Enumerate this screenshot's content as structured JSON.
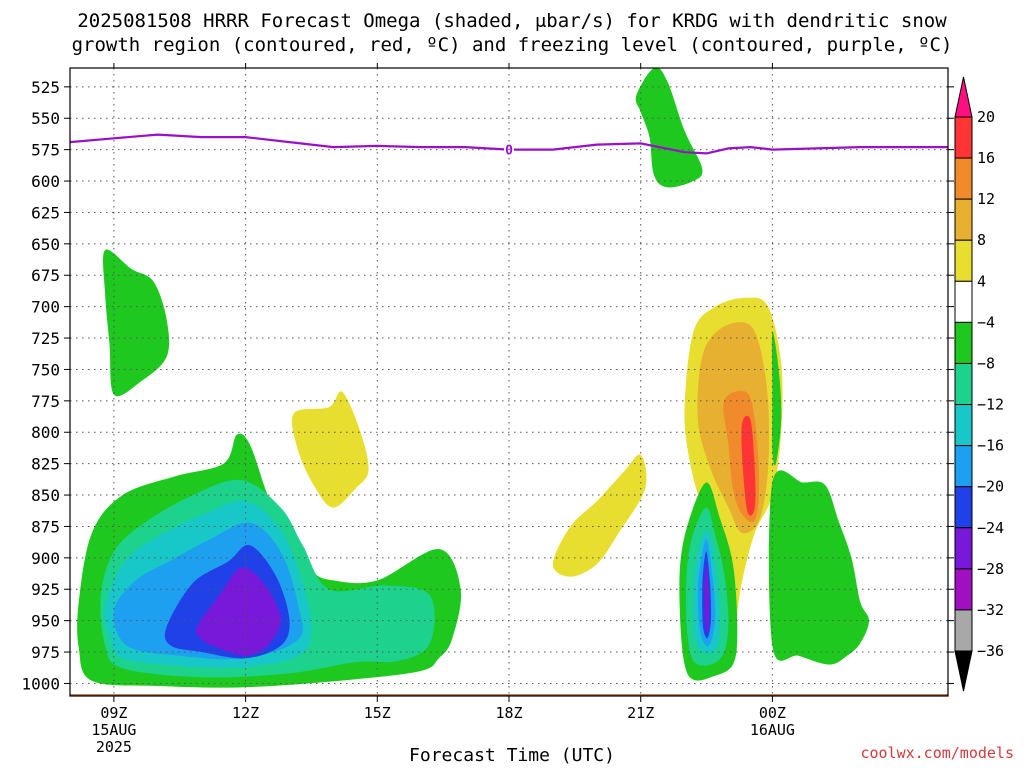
{
  "chart_data": {
    "type": "heatmap",
    "title_line1": "2025081508 HRRR Forecast Omega (shaded, μbar/s) for KRDG with dendritic snow",
    "title_line2": "growth region (contoured, red, ºC) and freezing level (contoured, purple, ºC)",
    "xlabel": "Forecast Time (UTC)",
    "ylabel": "",
    "y_ticks": [
      525,
      550,
      575,
      600,
      625,
      650,
      675,
      700,
      725,
      750,
      775,
      800,
      825,
      850,
      875,
      900,
      925,
      950,
      975,
      1000
    ],
    "y_range": [
      510,
      1010
    ],
    "x_range_hours": [
      8,
      28
    ],
    "x_ticks": [
      {
        "hour": 9,
        "label": "09Z",
        "sub1": "15AUG",
        "sub2": "2025"
      },
      {
        "hour": 12,
        "label": "12Z",
        "sub1": "",
        "sub2": ""
      },
      {
        "hour": 15,
        "label": "15Z",
        "sub1": "",
        "sub2": ""
      },
      {
        "hour": 18,
        "label": "18Z",
        "sub1": "",
        "sub2": ""
      },
      {
        "hour": 21,
        "label": "21Z",
        "sub1": "",
        "sub2": ""
      },
      {
        "hour": 24,
        "label": "00Z",
        "sub1": "16AUG",
        "sub2": ""
      }
    ],
    "grid": true,
    "colorbar": {
      "labels": [
        "20",
        "16",
        "12",
        "8",
        "4",
        "−4",
        "−8",
        "−12",
        "−16",
        "−20",
        "−24",
        "−28",
        "−32",
        "−36"
      ],
      "bins": [
        {
          "color": "#ff0f80",
          "lo": 20,
          "hi": 24
        },
        {
          "color": "#ff3535",
          "lo": 16,
          "hi": 20
        },
        {
          "color": "#f08a2a",
          "lo": 12,
          "hi": 16
        },
        {
          "color": "#e8b030",
          "lo": 8,
          "hi": 12
        },
        {
          "color": "#e8de30",
          "lo": 4,
          "hi": 8
        },
        {
          "color": "#ffffff",
          "lo": -4,
          "hi": 4
        },
        {
          "color": "#1ec81e",
          "lo": -8,
          "hi": -4
        },
        {
          "color": "#1cd28c",
          "lo": -12,
          "hi": -8
        },
        {
          "color": "#18c8c8",
          "lo": -16,
          "hi": -12
        },
        {
          "color": "#1ea0f0",
          "lo": -20,
          "hi": -16
        },
        {
          "color": "#2040e8",
          "lo": -24,
          "hi": -20
        },
        {
          "color": "#7818d8",
          "lo": -28,
          "hi": -24
        },
        {
          "color": "#a010c0",
          "lo": -32,
          "hi": -28
        },
        {
          "color": "#a8a8a8",
          "lo": -36,
          "hi": -32
        },
        {
          "color": "#000000",
          "lo": -40,
          "hi": -36
        }
      ]
    },
    "freezing_level": {
      "label": "0",
      "color": "#9a10c8",
      "points": [
        [
          8,
          569
        ],
        [
          9,
          566
        ],
        [
          10,
          563
        ],
        [
          11,
          565
        ],
        [
          12,
          565
        ],
        [
          13,
          569
        ],
        [
          14,
          573
        ],
        [
          15,
          572
        ],
        [
          16,
          573
        ],
        [
          17,
          573
        ],
        [
          18,
          575
        ],
        [
          19,
          575
        ],
        [
          20,
          571
        ],
        [
          21,
          570
        ],
        [
          22,
          577
        ],
        [
          22.5,
          578
        ],
        [
          23,
          574
        ],
        [
          23.5,
          573
        ],
        [
          24,
          575
        ],
        [
          25,
          574
        ],
        [
          26,
          573
        ],
        [
          28,
          573
        ]
      ]
    },
    "surface": {
      "color": "#a0522d",
      "pressure": 1011
    },
    "omega_regions": [
      {
        "name": "green-0900-upper",
        "value": -6,
        "pts": [
          [
            8.8,
            655
          ],
          [
            9.4,
            670
          ],
          [
            9.9,
            680
          ],
          [
            10.2,
            710
          ],
          [
            10.2,
            740
          ],
          [
            9.6,
            760
          ],
          [
            9.0,
            770
          ],
          [
            8.9,
            730
          ],
          [
            8.8,
            690
          ]
        ]
      },
      {
        "name": "green-lower-main",
        "value": -6,
        "pts": [
          [
            8.2,
            935
          ],
          [
            8.5,
            880
          ],
          [
            9.2,
            850
          ],
          [
            10.4,
            835
          ],
          [
            11.5,
            825
          ],
          [
            11.8,
            802
          ],
          [
            12.1,
            810
          ],
          [
            12.5,
            850
          ],
          [
            12.9,
            880
          ],
          [
            13.5,
            910
          ],
          [
            14.0,
            918
          ],
          [
            15.0,
            918
          ],
          [
            16.4,
            893
          ],
          [
            16.9,
            925
          ],
          [
            16.7,
            965
          ],
          [
            16.4,
            980
          ],
          [
            16.0,
            990
          ],
          [
            14.4,
            997
          ],
          [
            12.0,
            1003
          ],
          [
            10.0,
            1002
          ],
          [
            8.5,
            998
          ],
          [
            8.2,
            972
          ]
        ]
      },
      {
        "name": "teal-lower-main",
        "value": -10,
        "pts": [
          [
            8.7,
            930
          ],
          [
            9.0,
            895
          ],
          [
            9.7,
            872
          ],
          [
            10.8,
            850
          ],
          [
            11.9,
            838
          ],
          [
            12.8,
            860
          ],
          [
            13.3,
            890
          ],
          [
            13.9,
            925
          ],
          [
            15.2,
            922
          ],
          [
            16.2,
            930
          ],
          [
            16.2,
            968
          ],
          [
            15.5,
            982
          ],
          [
            14.5,
            983
          ],
          [
            13.0,
            992
          ],
          [
            11.0,
            995
          ],
          [
            9.2,
            988
          ],
          [
            8.8,
            970
          ]
        ]
      },
      {
        "name": "cyan-lower-main",
        "value": -14,
        "pts": [
          [
            8.8,
            940
          ],
          [
            9.2,
            905
          ],
          [
            9.9,
            885
          ],
          [
            11.0,
            866
          ],
          [
            12.0,
            855
          ],
          [
            12.8,
            878
          ],
          [
            13.3,
            920
          ],
          [
            13.5,
            958
          ],
          [
            13.2,
            978
          ],
          [
            12.0,
            987
          ],
          [
            10.5,
            986
          ],
          [
            9.2,
            980
          ],
          [
            8.9,
            962
          ]
        ]
      },
      {
        "name": "blue-lower-main",
        "value": -18,
        "pts": [
          [
            9.0,
            942
          ],
          [
            9.5,
            918
          ],
          [
            10.3,
            902
          ],
          [
            11.2,
            885
          ],
          [
            12.1,
            872
          ],
          [
            12.8,
            895
          ],
          [
            13.2,
            938
          ],
          [
            13.2,
            965
          ],
          [
            12.0,
            980
          ],
          [
            10.5,
            978
          ],
          [
            9.3,
            970
          ]
        ]
      },
      {
        "name": "royal-lower-main",
        "value": -22,
        "pts": [
          [
            10.2,
            955
          ],
          [
            10.8,
            920
          ],
          [
            11.6,
            903
          ],
          [
            12.1,
            890
          ],
          [
            12.7,
            915
          ],
          [
            13.0,
            950
          ],
          [
            12.8,
            970
          ],
          [
            12.0,
            980
          ],
          [
            11.0,
            975
          ],
          [
            10.3,
            970
          ]
        ]
      },
      {
        "name": "purple-lower-main",
        "value": -26,
        "pts": [
          [
            10.9,
            955
          ],
          [
            11.4,
            930
          ],
          [
            11.9,
            908
          ],
          [
            12.4,
            920
          ],
          [
            12.8,
            948
          ],
          [
            12.5,
            970
          ],
          [
            12.0,
            978
          ],
          [
            11.4,
            972
          ],
          [
            11.0,
            965
          ]
        ]
      },
      {
        "name": "yellow-1330",
        "value": 6,
        "pts": [
          [
            13.1,
            785
          ],
          [
            13.9,
            780
          ],
          [
            14.2,
            768
          ],
          [
            14.6,
            798
          ],
          [
            14.8,
            830
          ],
          [
            14.5,
            845
          ],
          [
            14.0,
            860
          ],
          [
            13.6,
            845
          ],
          [
            13.2,
            815
          ]
        ]
      },
      {
        "name": "yellow-2000",
        "value": 6,
        "pts": [
          [
            19.0,
            905
          ],
          [
            19.4,
            875
          ],
          [
            20.0,
            855
          ],
          [
            20.6,
            832
          ],
          [
            21.0,
            818
          ],
          [
            21.1,
            845
          ],
          [
            20.5,
            880
          ],
          [
            20.0,
            905
          ],
          [
            19.4,
            915
          ]
        ]
      },
      {
        "name": "green-2100-upper",
        "value": -6,
        "pts": [
          [
            21.3,
            510
          ],
          [
            21.6,
            520
          ],
          [
            22.0,
            560
          ],
          [
            22.4,
            590
          ],
          [
            22.2,
            600
          ],
          [
            21.6,
            605
          ],
          [
            21.3,
            595
          ],
          [
            21.2,
            565
          ],
          [
            21.0,
            545
          ],
          [
            20.9,
            532
          ]
        ]
      },
      {
        "name": "yellow-2300",
        "value": 6,
        "pts": [
          [
            22.2,
            720
          ],
          [
            22.7,
            700
          ],
          [
            23.4,
            693
          ],
          [
            23.9,
            700
          ],
          [
            24.2,
            745
          ],
          [
            24.2,
            800
          ],
          [
            24.0,
            850
          ],
          [
            23.6,
            880
          ],
          [
            23.3,
            920
          ],
          [
            23.1,
            962
          ],
          [
            22.9,
            940
          ],
          [
            22.9,
            900
          ],
          [
            22.4,
            860
          ],
          [
            22.1,
            820
          ],
          [
            22.0,
            780
          ]
        ]
      },
      {
        "name": "gold-2300",
        "value": 10,
        "pts": [
          [
            22.4,
            740
          ],
          [
            22.8,
            718
          ],
          [
            23.4,
            713
          ],
          [
            23.7,
            730
          ],
          [
            23.9,
            775
          ],
          [
            23.9,
            830
          ],
          [
            23.7,
            870
          ],
          [
            23.3,
            880
          ],
          [
            23.0,
            860
          ],
          [
            22.6,
            830
          ],
          [
            22.3,
            790
          ]
        ]
      },
      {
        "name": "orange-2300",
        "value": 14,
        "pts": [
          [
            22.9,
            775
          ],
          [
            23.4,
            768
          ],
          [
            23.6,
            790
          ],
          [
            23.7,
            840
          ],
          [
            23.6,
            870
          ],
          [
            23.3,
            865
          ],
          [
            23.1,
            845
          ],
          [
            23.0,
            810
          ]
        ]
      },
      {
        "name": "red-2300",
        "value": 18,
        "pts": [
          [
            23.3,
            795
          ],
          [
            23.5,
            790
          ],
          [
            23.6,
            830
          ],
          [
            23.6,
            860
          ],
          [
            23.45,
            865
          ],
          [
            23.35,
            840
          ]
        ]
      },
      {
        "name": "green-2200-lower",
        "value": -6,
        "pts": [
          [
            22.5,
            840
          ],
          [
            22.8,
            868
          ],
          [
            23.1,
            905
          ],
          [
            23.2,
            955
          ],
          [
            23.1,
            985
          ],
          [
            22.6,
            995
          ],
          [
            22.2,
            997
          ],
          [
            22.0,
            985
          ],
          [
            21.9,
            950
          ],
          [
            21.9,
            905
          ],
          [
            22.1,
            870
          ]
        ]
      },
      {
        "name": "teal-2200-lower",
        "value": -10,
        "pts": [
          [
            22.5,
            860
          ],
          [
            22.7,
            882
          ],
          [
            22.9,
            912
          ],
          [
            23.0,
            950
          ],
          [
            22.9,
            975
          ],
          [
            22.6,
            985
          ],
          [
            22.2,
            982
          ],
          [
            22.05,
            955
          ],
          [
            22.05,
            910
          ],
          [
            22.2,
            880
          ]
        ]
      },
      {
        "name": "cyan-2200-lower",
        "value": -14,
        "pts": [
          [
            22.5,
            878
          ],
          [
            22.7,
            905
          ],
          [
            22.8,
            945
          ],
          [
            22.75,
            970
          ],
          [
            22.5,
            976
          ],
          [
            22.25,
            966
          ],
          [
            22.2,
            935
          ],
          [
            22.25,
            905
          ]
        ]
      },
      {
        "name": "blue-2200-lower",
        "value": -18,
        "pts": [
          [
            22.5,
            885
          ],
          [
            22.62,
            910
          ],
          [
            22.7,
            945
          ],
          [
            22.62,
            965
          ],
          [
            22.5,
            970
          ],
          [
            22.35,
            958
          ],
          [
            22.3,
            930
          ],
          [
            22.36,
            905
          ]
        ]
      },
      {
        "name": "royal-2200-lower",
        "value": -22,
        "pts": [
          [
            22.5,
            895
          ],
          [
            22.58,
            920
          ],
          [
            22.6,
            950
          ],
          [
            22.52,
            964
          ],
          [
            22.42,
            955
          ],
          [
            22.4,
            928
          ],
          [
            22.43,
            908
          ]
        ]
      },
      {
        "name": "purple-2200-lower",
        "value": -26,
        "pts": [
          [
            22.5,
            905
          ],
          [
            22.56,
            930
          ],
          [
            22.55,
            955
          ],
          [
            22.49,
            958
          ],
          [
            22.45,
            935
          ],
          [
            22.46,
            915
          ]
        ]
      },
      {
        "name": "green-2400-sliver",
        "value": -6,
        "pts": [
          [
            24.0,
            720
          ],
          [
            24.15,
            752
          ],
          [
            24.2,
            790
          ],
          [
            24.08,
            825
          ],
          [
            24.0,
            815
          ],
          [
            24.0,
            770
          ]
        ]
      },
      {
        "name": "green-0000-lower",
        "value": -6,
        "pts": [
          [
            24.0,
            840
          ],
          [
            24.7,
            840
          ],
          [
            25.2,
            842
          ],
          [
            25.5,
            870
          ],
          [
            25.8,
            900
          ],
          [
            26.0,
            935
          ],
          [
            26.2,
            950
          ],
          [
            26.0,
            968
          ],
          [
            25.7,
            978
          ],
          [
            25.3,
            985
          ],
          [
            24.6,
            978
          ],
          [
            24.0,
            970
          ]
        ]
      }
    ]
  },
  "footer": {
    "credit": "coolwx.com/models"
  }
}
